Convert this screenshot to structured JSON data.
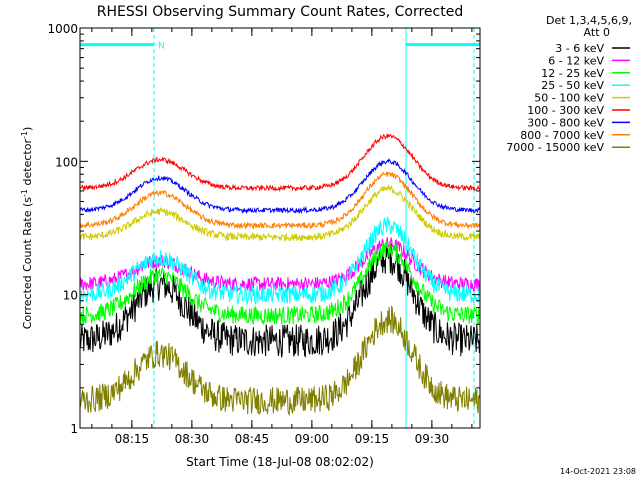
{
  "chart_data": {
    "type": "line",
    "title": "RHESSI Observing Summary Count Rates, Corrected",
    "xlabel": "Start Time (18-Jul-08 08:02:02)",
    "ylabel_main": "Corrected Count Rate (s",
    "ylabel_sup1": "-1",
    "ylabel_mid": " detector",
    "ylabel_sup2": "-1",
    "ylabel_end": ")",
    "yscale": "log",
    "ylim": [
      1,
      1000
    ],
    "xlim_minutes": [
      0,
      100
    ],
    "x_ticks": [
      {
        "label": "08:15",
        "minute": 12.97
      },
      {
        "label": "08:30",
        "minute": 27.97
      },
      {
        "label": "08:45",
        "minute": 42.97
      },
      {
        "label": "09:00",
        "minute": 57.97
      },
      {
        "label": "09:15",
        "minute": 72.97
      },
      {
        "label": "09:30",
        "minute": 87.97
      }
    ],
    "y_ticks": [
      {
        "label": "1",
        "value": 1
      },
      {
        "label": "10",
        "value": 10
      },
      {
        "label": "100",
        "value": 100
      },
      {
        "label": "1000",
        "value": 1000
      }
    ],
    "legend_header": [
      "Det 1,3,4,5,6,9,",
      "Att 0"
    ],
    "legend_position": "right",
    "series": [
      {
        "name": "3 - 6 keV",
        "color": "#000000",
        "base": 4.5,
        "peak1": 12,
        "peak2": 19,
        "noise": 0.18
      },
      {
        "name": "6 - 12 keV",
        "color": "#ff00ff",
        "base": 12,
        "peak1": 18,
        "peak2": 24,
        "noise": 0.08
      },
      {
        "name": "12 - 25 keV",
        "color": "#00ff00",
        "base": 7,
        "peak1": 14,
        "peak2": 22,
        "noise": 0.1
      },
      {
        "name": "25 - 50 keV",
        "color": "#00ffff",
        "base": 10,
        "peak1": 19,
        "peak2": 33,
        "noise": 0.1
      },
      {
        "name": "50 - 100 keV",
        "color": "#cccc00",
        "base": 27,
        "peak1": 42,
        "peak2": 62,
        "noise": 0.04
      },
      {
        "name": "100 - 300 keV",
        "color": "#ff0000",
        "base": 63,
        "peak1": 103,
        "peak2": 155,
        "noise": 0.025
      },
      {
        "name": "300 - 800 keV",
        "color": "#0000ff",
        "base": 43,
        "peak1": 75,
        "peak2": 100,
        "noise": 0.025
      },
      {
        "name": "800 - 7000 keV",
        "color": "#ff8000",
        "base": 33,
        "peak1": 58,
        "peak2": 80,
        "noise": 0.03
      },
      {
        "name": "7000 - 15000 keV",
        "color": "#808000",
        "base": 1.6,
        "peak1": 3.6,
        "peak2": 6.5,
        "noise": 0.15
      }
    ],
    "event_bars": [
      {
        "label": "N",
        "color": "#00ffff",
        "start_minute": 0,
        "end_minute": 18.5,
        "value": 750
      },
      {
        "label": "",
        "color": "#00ffff",
        "start_minute": 81.5,
        "end_minute": 100,
        "value": 750
      }
    ],
    "event_lines": [
      {
        "minute": 18.5,
        "style": "dashed",
        "color": "#00ffff"
      },
      {
        "minute": 81.5,
        "style": "solid",
        "color": "#00ffff"
      },
      {
        "minute": 98.5,
        "style": "dashed",
        "color": "#00ffff"
      }
    ]
  },
  "timestamp": "14-Oct-2021 23:08"
}
